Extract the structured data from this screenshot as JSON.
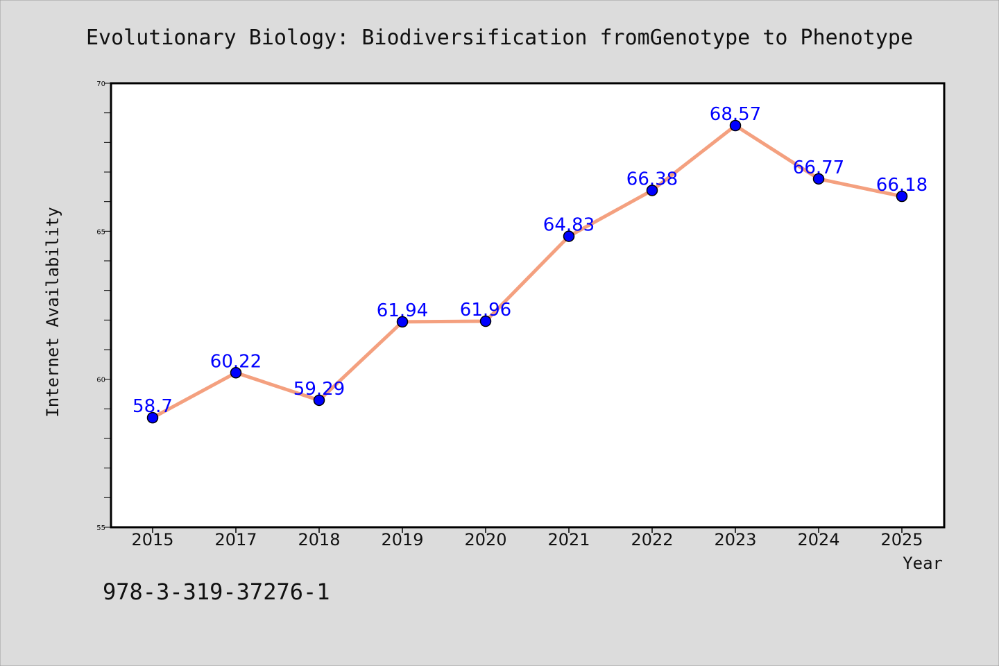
{
  "chart_data": {
    "type": "line",
    "title": "Evolutionary Biology: Biodiversification fromGenotype to Phenotype",
    "xlabel": "Year",
    "ylabel": "Internet Availability",
    "categories": [
      "2015",
      "2017",
      "2018",
      "2019",
      "2020",
      "2021",
      "2022",
      "2023",
      "2024",
      "2025"
    ],
    "series": [
      {
        "values": [
          58.7,
          60.22,
          59.29,
          61.94,
          61.96,
          64.83,
          66.38,
          68.57,
          66.77,
          66.18
        ],
        "labels": [
          "58.7",
          "60.22",
          "59.29",
          "61.94",
          "61.96",
          "64.83",
          "66.38",
          "68.57",
          "66.77",
          "66.18"
        ]
      }
    ],
    "ylim": [
      55,
      70
    ],
    "yticks": [
      "55",
      "60",
      "65",
      "70"
    ],
    "line_color": "#f4a07f",
    "marker_color": "#0000ff",
    "label_color": "#0000ff",
    "grid": false
  },
  "footer": {
    "text": "978-3-319-37276-1"
  }
}
